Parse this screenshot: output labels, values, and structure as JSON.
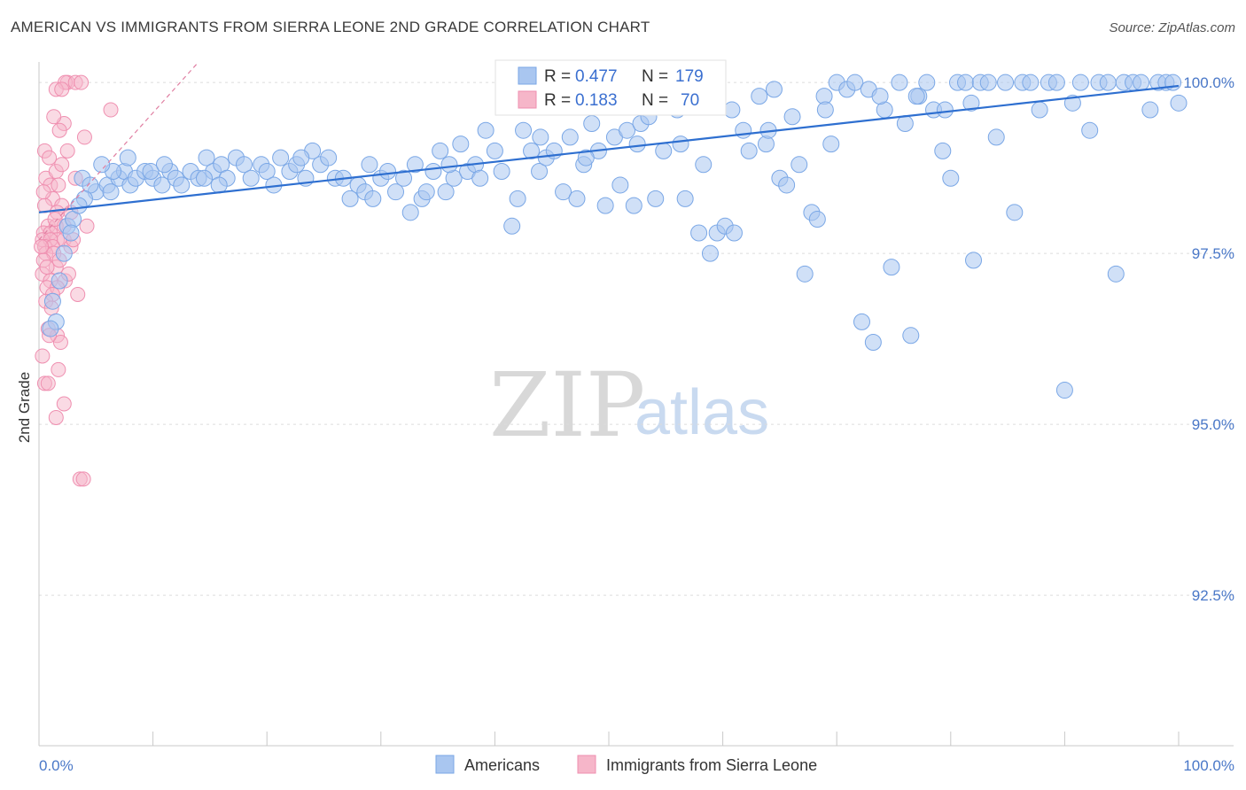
{
  "header": {
    "title": "AMERICAN VS IMMIGRANTS FROM SIERRA LEONE 2ND GRADE CORRELATION CHART",
    "source": "Source: ZipAtlas.com"
  },
  "watermark": {
    "part1": "ZIP",
    "part2": "atlas"
  },
  "legend": {
    "rows": [
      {
        "r_label": "R = ",
        "r_value": "0.477",
        "n_label": "N = ",
        "n_value": "179",
        "color": "#a9c6f0"
      },
      {
        "r_label": "R = ",
        "r_value": "0.183",
        "n_label": "N = ",
        "n_value": "70",
        "color": "#f6b6c9"
      }
    ]
  },
  "bottom_legend": [
    {
      "label": "Americans",
      "color": "#a9c6f0"
    },
    {
      "label": "Immigrants from Sierra Leone",
      "color": "#f6b6c9"
    }
  ],
  "chart_data": {
    "type": "scatter",
    "title": "AMERICAN VS IMMIGRANTS FROM SIERRA LEONE 2ND GRADE CORRELATION CHART",
    "xlabel": "",
    "ylabel": "2nd Grade",
    "xlim": [
      0,
      100
    ],
    "ylim": [
      90.3,
      100.3
    ],
    "x_tick_labels": [
      "0.0%",
      "100.0%"
    ],
    "y_ticks": [
      {
        "value": 100.0,
        "label": "100.0%"
      },
      {
        "value": 97.5,
        "label": "97.5%"
      },
      {
        "value": 95.0,
        "label": "95.0%"
      },
      {
        "value": 92.5,
        "label": "92.5%"
      }
    ],
    "grid": true,
    "legend_position": "top-center",
    "series": [
      {
        "name": "Americans",
        "color": "#7aa7e6",
        "trend": {
          "x": [
            0,
            100
          ],
          "y": [
            98.1,
            99.95
          ]
        },
        "points": [
          [
            5.0,
            98.4
          ],
          [
            6.0,
            98.5
          ],
          [
            6.3,
            98.4
          ],
          [
            7.0,
            98.6
          ],
          [
            7.5,
            98.7
          ],
          [
            8.0,
            98.5
          ],
          [
            8.5,
            98.6
          ],
          [
            9.3,
            98.7
          ],
          [
            10.0,
            98.6
          ],
          [
            10.8,
            98.5
          ],
          [
            11.5,
            98.7
          ],
          [
            12.0,
            98.6
          ],
          [
            12.5,
            98.5
          ],
          [
            13.3,
            98.7
          ],
          [
            14.0,
            98.6
          ],
          [
            14.7,
            98.9
          ],
          [
            15.3,
            98.7
          ],
          [
            16.0,
            98.8
          ],
          [
            16.5,
            98.6
          ],
          [
            17.3,
            98.9
          ],
          [
            18.0,
            98.8
          ],
          [
            18.6,
            98.6
          ],
          [
            19.5,
            98.8
          ],
          [
            20.0,
            98.7
          ],
          [
            20.6,
            98.5
          ],
          [
            21.2,
            98.9
          ],
          [
            22.0,
            98.7
          ],
          [
            22.6,
            98.8
          ],
          [
            23.4,
            98.6
          ],
          [
            24.0,
            99.0
          ],
          [
            24.7,
            98.8
          ],
          [
            25.4,
            98.9
          ],
          [
            26.0,
            98.6
          ],
          [
            26.7,
            98.6
          ],
          [
            27.3,
            98.3
          ],
          [
            28.0,
            98.5
          ],
          [
            28.6,
            98.4
          ],
          [
            29.3,
            98.3
          ],
          [
            30.0,
            98.6
          ],
          [
            30.6,
            98.7
          ],
          [
            31.3,
            98.4
          ],
          [
            32.0,
            98.6
          ],
          [
            32.6,
            98.1
          ],
          [
            33.0,
            98.8
          ],
          [
            33.6,
            98.3
          ],
          [
            34.0,
            98.4
          ],
          [
            34.6,
            98.7
          ],
          [
            35.2,
            99.0
          ],
          [
            35.7,
            98.4
          ],
          [
            36.4,
            98.6
          ],
          [
            37.0,
            99.1
          ],
          [
            37.6,
            98.7
          ],
          [
            38.3,
            98.8
          ],
          [
            38.7,
            98.6
          ],
          [
            39.2,
            99.3
          ],
          [
            40.0,
            99.0
          ],
          [
            40.6,
            98.7
          ],
          [
            41.5,
            97.9
          ],
          [
            42.0,
            98.3
          ],
          [
            42.5,
            99.3
          ],
          [
            43.2,
            99.0
          ],
          [
            43.9,
            98.7
          ],
          [
            44.5,
            98.9
          ],
          [
            45.2,
            99.0
          ],
          [
            46.0,
            98.4
          ],
          [
            46.6,
            99.2
          ],
          [
            47.2,
            98.3
          ],
          [
            47.8,
            98.8
          ],
          [
            48.5,
            99.4
          ],
          [
            49.1,
            99.0
          ],
          [
            49.7,
            98.2
          ],
          [
            50.5,
            99.2
          ],
          [
            51.0,
            98.5
          ],
          [
            51.6,
            99.3
          ],
          [
            52.2,
            98.2
          ],
          [
            52.8,
            99.4
          ],
          [
            53.5,
            99.5
          ],
          [
            54.1,
            98.3
          ],
          [
            54.8,
            99.0
          ],
          [
            55.4,
            99.8
          ],
          [
            56.0,
            99.6
          ],
          [
            56.7,
            98.3
          ],
          [
            57.3,
            99.7
          ],
          [
            57.9,
            97.8
          ],
          [
            58.3,
            98.8
          ],
          [
            58.9,
            97.5
          ],
          [
            59.5,
            97.8
          ],
          [
            60.2,
            97.9
          ],
          [
            61.0,
            97.8
          ],
          [
            61.8,
            99.3
          ],
          [
            62.3,
            99.0
          ],
          [
            63.2,
            99.8
          ],
          [
            63.8,
            99.1
          ],
          [
            64.5,
            99.9
          ],
          [
            65.0,
            98.6
          ],
          [
            65.6,
            98.5
          ],
          [
            66.1,
            99.5
          ],
          [
            66.7,
            98.8
          ],
          [
            67.2,
            97.2
          ],
          [
            67.8,
            98.1
          ],
          [
            68.3,
            98.0
          ],
          [
            68.9,
            99.8
          ],
          [
            69.5,
            99.1
          ],
          [
            70.0,
            100.0
          ],
          [
            70.9,
            99.9
          ],
          [
            71.6,
            100.0
          ],
          [
            72.2,
            96.5
          ],
          [
            72.8,
            99.9
          ],
          [
            73.2,
            96.2
          ],
          [
            74.2,
            99.6
          ],
          [
            74.8,
            97.3
          ],
          [
            75.5,
            100.0
          ],
          [
            76.0,
            99.4
          ],
          [
            76.5,
            96.3
          ],
          [
            77.2,
            99.8
          ],
          [
            77.9,
            100.0
          ],
          [
            78.5,
            99.6
          ],
          [
            79.3,
            99.0
          ],
          [
            80.0,
            98.6
          ],
          [
            80.6,
            100.0
          ],
          [
            81.3,
            100.0
          ],
          [
            82.0,
            97.4
          ],
          [
            82.6,
            100.0
          ],
          [
            83.3,
            100.0
          ],
          [
            84.0,
            99.2
          ],
          [
            84.8,
            100.0
          ],
          [
            85.6,
            98.1
          ],
          [
            86.3,
            100.0
          ],
          [
            87.0,
            100.0
          ],
          [
            87.8,
            99.6
          ],
          [
            88.6,
            100.0
          ],
          [
            89.3,
            100.0
          ],
          [
            90.0,
            95.5
          ],
          [
            90.7,
            99.7
          ],
          [
            91.4,
            100.0
          ],
          [
            92.2,
            99.3
          ],
          [
            93.0,
            100.0
          ],
          [
            93.8,
            100.0
          ],
          [
            94.5,
            97.2
          ],
          [
            95.2,
            100.0
          ],
          [
            96.0,
            100.0
          ],
          [
            96.7,
            100.0
          ],
          [
            97.5,
            99.6
          ],
          [
            98.2,
            100.0
          ],
          [
            98.9,
            100.0
          ],
          [
            99.5,
            100.0
          ],
          [
            100.0,
            99.7
          ],
          [
            6.5,
            98.7
          ],
          [
            9.8,
            98.7
          ],
          [
            11.0,
            98.8
          ],
          [
            15.8,
            98.5
          ],
          [
            23.0,
            98.9
          ],
          [
            29.0,
            98.8
          ],
          [
            36.0,
            98.8
          ],
          [
            44.0,
            99.2
          ],
          [
            48.0,
            98.9
          ],
          [
            52.5,
            99.1
          ],
          [
            56.3,
            99.1
          ],
          [
            60.8,
            99.6
          ],
          [
            64.0,
            99.3
          ],
          [
            69.0,
            99.6
          ],
          [
            73.8,
            99.8
          ],
          [
            77.0,
            99.8
          ],
          [
            79.5,
            99.6
          ],
          [
            81.8,
            99.7
          ],
          [
            2.5,
            97.9
          ],
          [
            2.2,
            97.5
          ],
          [
            1.8,
            97.1
          ],
          [
            1.5,
            96.5
          ],
          [
            3.0,
            98.0
          ],
          [
            3.8,
            98.6
          ],
          [
            4.5,
            98.5
          ],
          [
            5.5,
            98.8
          ],
          [
            2.8,
            97.8
          ],
          [
            1.2,
            96.8
          ],
          [
            1.0,
            96.4
          ],
          [
            4.0,
            98.3
          ],
          [
            3.5,
            98.2
          ],
          [
            7.8,
            98.9
          ],
          [
            14.5,
            98.6
          ]
        ]
      },
      {
        "name": "Immigrants from Sierra Leone",
        "color": "#ef8fb0",
        "trend": {
          "x": [
            0,
            14
          ],
          "y": [
            97.7,
            100.3
          ]
        },
        "points": [
          [
            2.5,
            100.0
          ],
          [
            2.3,
            100.0
          ],
          [
            3.2,
            100.0
          ],
          [
            3.7,
            100.0
          ],
          [
            1.5,
            99.9
          ],
          [
            2.0,
            99.9
          ],
          [
            6.3,
            99.6
          ],
          [
            2.2,
            99.4
          ],
          [
            1.8,
            99.3
          ],
          [
            4.0,
            99.2
          ],
          [
            0.5,
            99.0
          ],
          [
            2.5,
            99.0
          ],
          [
            0.6,
            98.6
          ],
          [
            1.5,
            98.7
          ],
          [
            3.2,
            98.6
          ],
          [
            1.0,
            98.5
          ],
          [
            1.7,
            98.5
          ],
          [
            1.2,
            98.3
          ],
          [
            2.0,
            98.2
          ],
          [
            0.5,
            98.2
          ],
          [
            1.6,
            98.1
          ],
          [
            0.8,
            97.9
          ],
          [
            1.5,
            97.9
          ],
          [
            2.2,
            97.9
          ],
          [
            0.4,
            97.8
          ],
          [
            1.0,
            97.8
          ],
          [
            1.6,
            97.7
          ],
          [
            2.2,
            97.7
          ],
          [
            0.3,
            97.7
          ],
          [
            1.0,
            97.7
          ],
          [
            0.5,
            97.6
          ],
          [
            1.2,
            97.6
          ],
          [
            2.8,
            97.6
          ],
          [
            0.6,
            97.5
          ],
          [
            1.3,
            97.5
          ],
          [
            0.4,
            97.4
          ],
          [
            1.5,
            97.3
          ],
          [
            0.3,
            97.2
          ],
          [
            1.0,
            97.1
          ],
          [
            2.3,
            97.1
          ],
          [
            0.7,
            97.0
          ],
          [
            1.6,
            97.0
          ],
          [
            1.2,
            96.9
          ],
          [
            3.4,
            96.9
          ],
          [
            0.6,
            96.8
          ],
          [
            1.1,
            96.7
          ],
          [
            0.8,
            96.4
          ],
          [
            1.6,
            96.3
          ],
          [
            1.9,
            96.2
          ],
          [
            0.3,
            96.0
          ],
          [
            1.7,
            95.8
          ],
          [
            0.5,
            95.6
          ],
          [
            0.8,
            95.6
          ],
          [
            2.2,
            95.3
          ],
          [
            1.5,
            95.1
          ],
          [
            3.6,
            94.2
          ],
          [
            3.9,
            94.2
          ],
          [
            0.9,
            96.3
          ],
          [
            1.4,
            98.0
          ],
          [
            2.8,
            98.1
          ],
          [
            4.2,
            97.9
          ],
          [
            0.2,
            97.6
          ],
          [
            3.0,
            97.7
          ],
          [
            0.7,
            97.3
          ],
          [
            1.8,
            97.4
          ],
          [
            2.6,
            97.2
          ],
          [
            0.9,
            98.9
          ],
          [
            1.3,
            99.5
          ],
          [
            0.4,
            98.4
          ],
          [
            2.0,
            98.8
          ]
        ]
      }
    ]
  }
}
